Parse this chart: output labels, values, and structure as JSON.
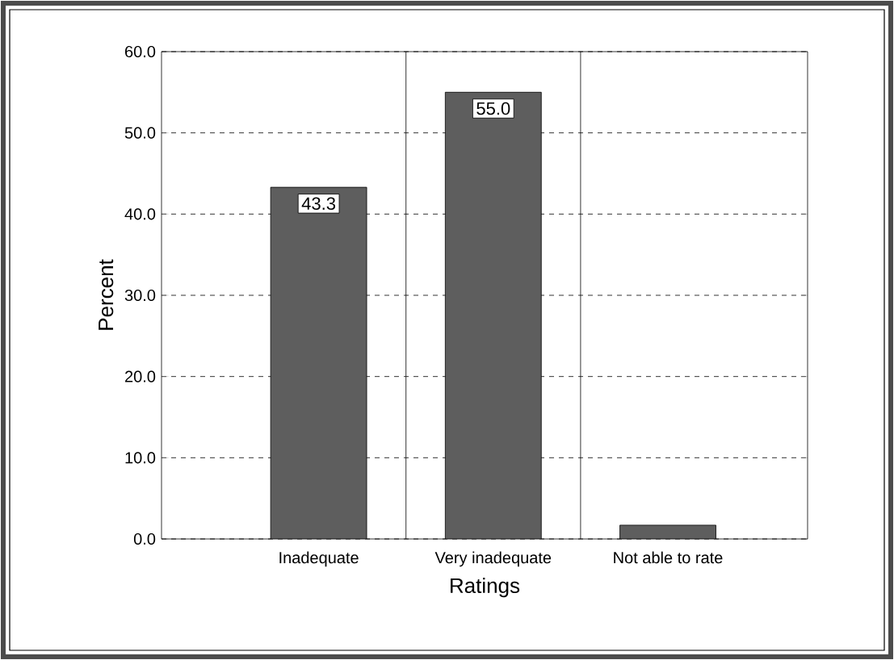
{
  "chart_data": {
    "type": "bar",
    "xlabel": "Ratings",
    "ylabel": "Percent",
    "categories": [
      "Inadequate",
      "Very inadequate",
      "Not able to rate"
    ],
    "values": [
      43.3,
      55.0,
      1.7
    ],
    "value_labels": [
      "43.3",
      "55.0",
      null
    ],
    "color": "#5e5e5e",
    "ylim": [
      0,
      60
    ],
    "yticks": [
      {
        "value": 0,
        "label": "0.0"
      },
      {
        "value": 10,
        "label": "10.0"
      },
      {
        "value": 20,
        "label": "20.0"
      },
      {
        "value": 30,
        "label": "30.0"
      },
      {
        "value": 40,
        "label": "40.0"
      },
      {
        "value": 50,
        "label": "50.0"
      },
      {
        "value": 60,
        "label": "60.0"
      }
    ],
    "grid": true
  }
}
